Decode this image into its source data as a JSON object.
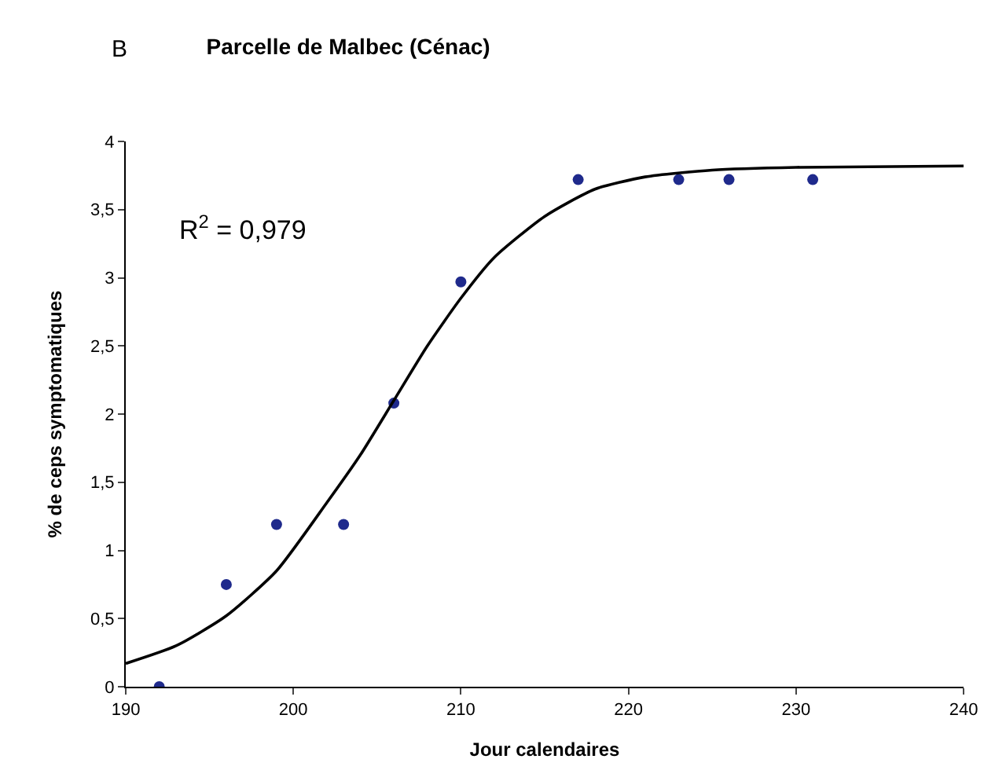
{
  "chart_data": {
    "type": "scatter",
    "title": "Parcelle de Malbec (Cénac)",
    "xlabel": "Jour calendaires",
    "ylabel": "% de ceps symptomatiques",
    "annotations": [
      "B",
      "R$^{2}$ = 0,979"
    ],
    "series": [
      {
        "color": "#1f2a8c",
        "marker": "circle",
        "x": [
          192,
          196,
          199,
          203,
          206,
          210,
          217,
          223,
          226,
          231
        ],
        "values": [
          0,
          0.75,
          1.19,
          1.19,
          2.08,
          2.97,
          3.72,
          3.72,
          3.72,
          3.72
        ]
      },
      {
        "type": "line",
        "color": "#000000",
        "marker": "none",
        "line_style": "solid",
        "x": [
          190,
          193,
          196,
          199,
          202,
          204,
          206,
          208,
          210,
          212,
          215,
          218,
          221,
          225,
          230,
          240
        ],
        "values": [
          0.17,
          0.3,
          0.52,
          0.85,
          1.35,
          1.7,
          2.1,
          2.5,
          2.85,
          3.15,
          3.45,
          3.65,
          3.74,
          3.79,
          3.81,
          3.82
        ]
      }
    ],
    "xlim": [
      190,
      240
    ],
    "xticks": [
      190,
      200,
      210,
      220,
      230,
      240
    ],
    "ylim": [
      0,
      4
    ],
    "yticks": [
      0,
      {
        "value": 0.5,
        "label": "0,5"
      },
      1,
      {
        "value": 1.5,
        "label": "1,5"
      },
      2,
      {
        "value": 2.5,
        "label": "2,5"
      },
      3,
      {
        "value": 3.5,
        "label": "3,5"
      },
      4
    ]
  }
}
